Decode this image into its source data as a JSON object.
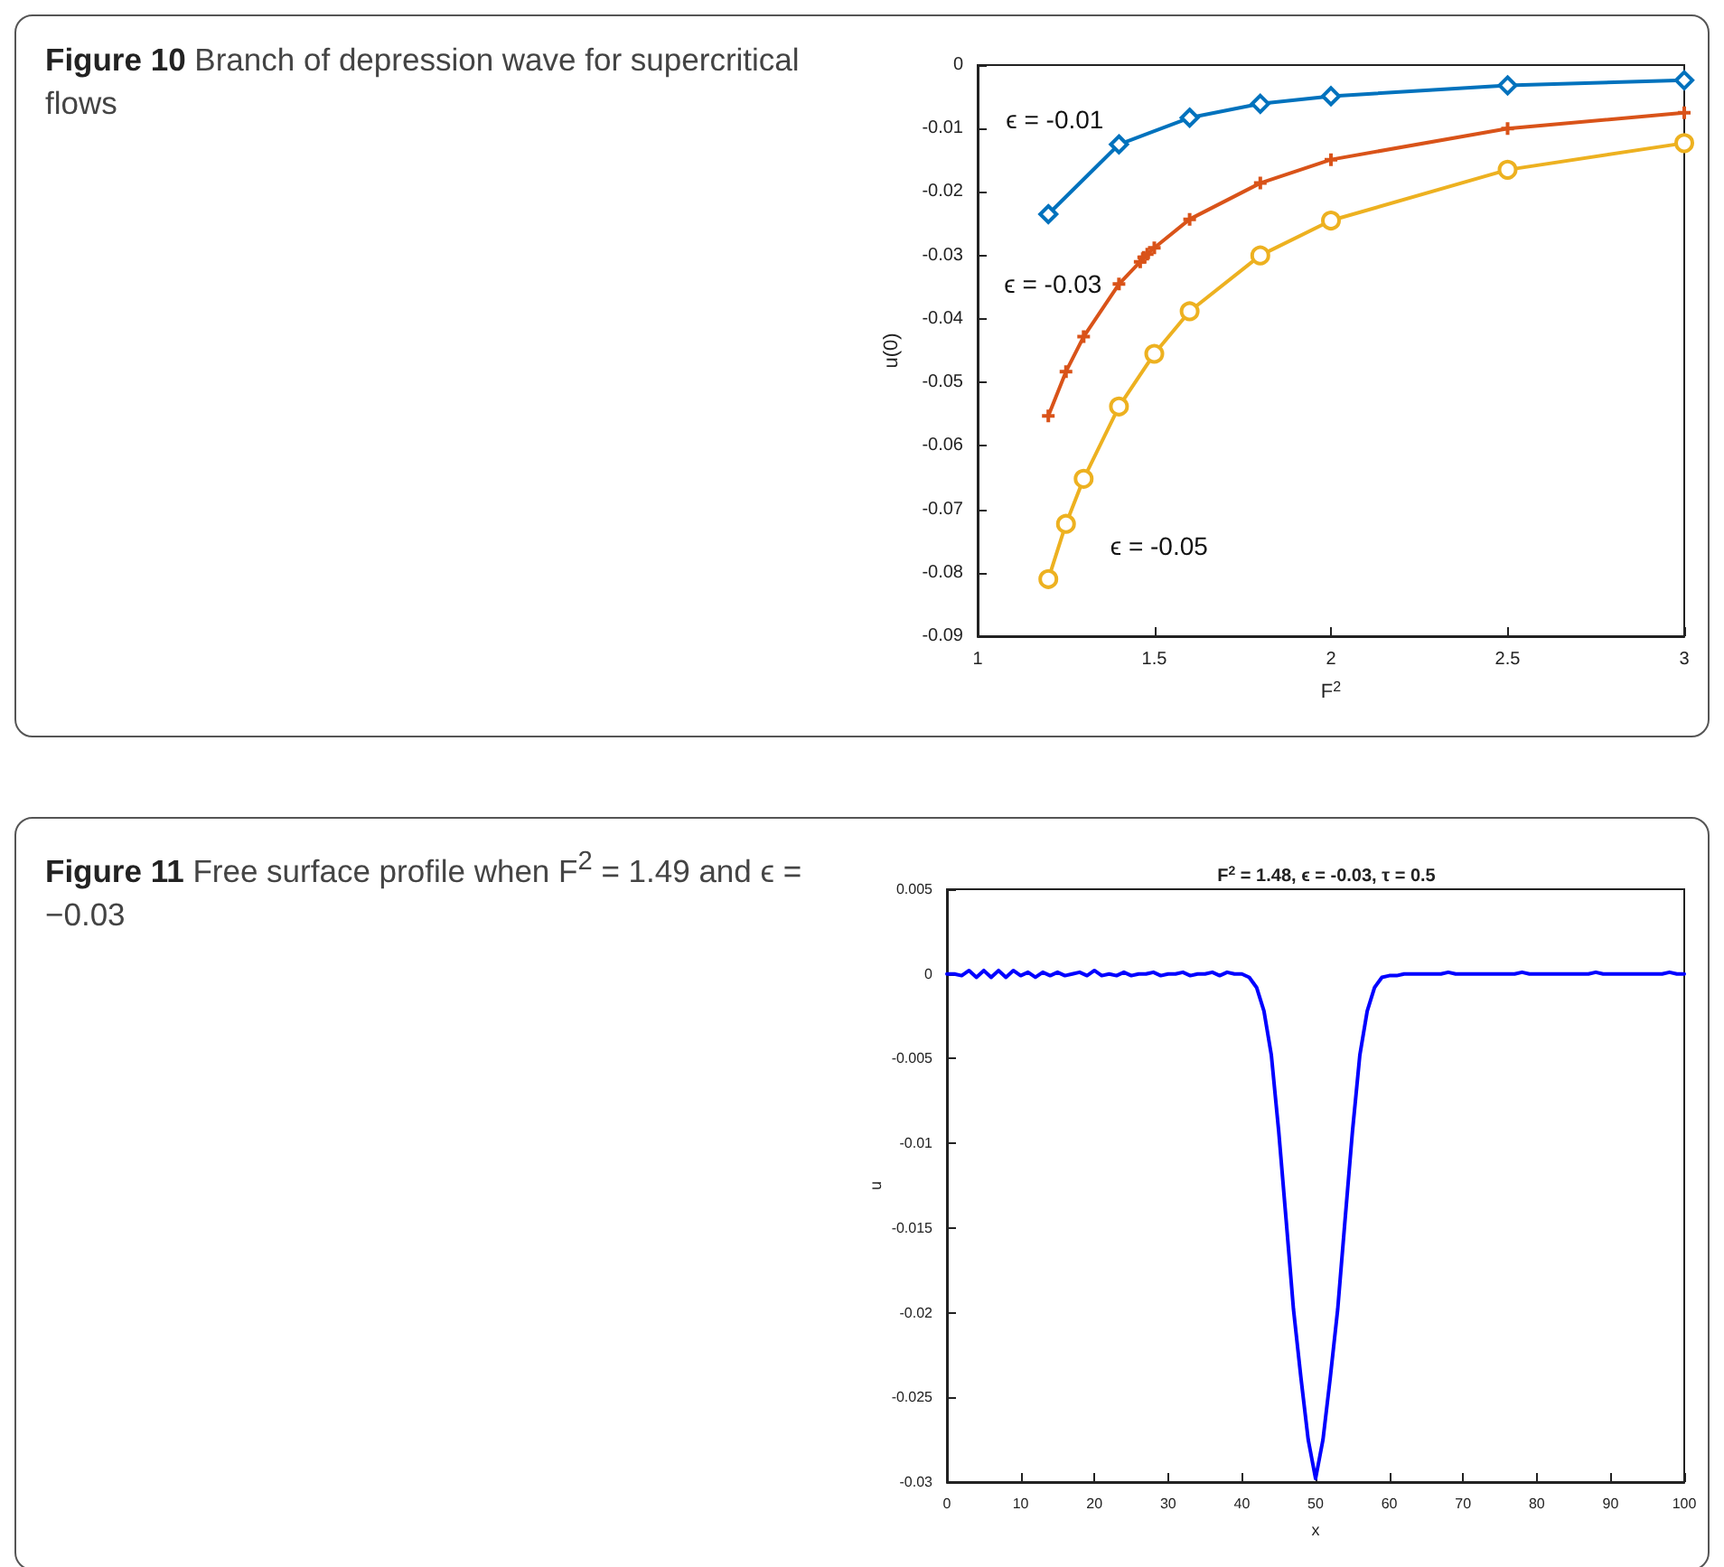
{
  "chart_data": [
    {
      "type": "line",
      "annotations": [
        "Figure 10  Branch of depression wave for supercritical flows"
      ],
      "xlabel": "F$^{2}$",
      "ylabel": "u(0)",
      "xlim": [
        1,
        3
      ],
      "xticks": [
        1,
        1.5,
        2,
        2.5,
        3
      ],
      "ylim": [
        -0.09,
        0
      ],
      "yticks": [
        -0.09,
        -0.08,
        -0.07,
        -0.06,
        -0.05,
        -0.04,
        -0.03,
        -0.02,
        -0.01,
        0
      ],
      "grid": false,
      "legend": false,
      "series": [
        {
          "name": "ϵ = -0.01",
          "color": "#0072bd",
          "marker": "diamond",
          "x": [
            1.2,
            1.4,
            1.6,
            1.8,
            2,
            2.5,
            3
          ],
          "values": [
            -0.0235,
            -0.0125,
            -0.0083,
            -0.0061,
            -0.0049,
            -0.0032,
            -0.0024
          ]
        },
        {
          "name": "ϵ = -0.03",
          "color": "#d95319",
          "marker": "cross",
          "x": [
            1.2,
            1.25,
            1.3,
            1.4,
            1.46,
            1.47,
            1.48,
            1.5,
            1.6,
            1.8,
            2,
            2.5,
            3
          ],
          "values": [
            -0.0553,
            -0.0483,
            -0.0428,
            -0.0345,
            -0.031,
            -0.0303,
            -0.0298,
            -0.0288,
            -0.0243,
            -0.0186,
            -0.0149,
            -0.01,
            -0.0075
          ]
        },
        {
          "name": "ϵ = -0.05",
          "color": "#edb120",
          "marker": "circle",
          "x": [
            1.2,
            1.25,
            1.3,
            1.4,
            1.5,
            1.6,
            1.8,
            2,
            2.5,
            3
          ],
          "values": [
            -0.081,
            -0.0723,
            -0.0652,
            -0.0538,
            -0.0455,
            -0.0388,
            -0.03,
            -0.0245,
            -0.0165,
            -0.0123
          ]
        }
      ]
    },
    {
      "type": "line",
      "annotations": [
        "Figure 11  Free surface profile when F$^{2}$ = 1.49 and ϵ = −0.03"
      ],
      "title": "F$^{2}$ = 1.48, ϵ = -0.03, τ = 0.5",
      "xlabel": "x",
      "ylabel": "u",
      "xlim": [
        0,
        100
      ],
      "xticks": [
        0,
        10,
        20,
        30,
        40,
        50,
        60,
        70,
        80,
        90,
        100
      ],
      "ylim": [
        -0.03,
        0.005
      ],
      "yticks": [
        -0.03,
        -0.025,
        -0.02,
        -0.015,
        -0.01,
        -0.005,
        0,
        0.005
      ],
      "grid": false,
      "legend": false,
      "series": [
        {
          "color": "#0000ff",
          "x": [
            0,
            1,
            2,
            3,
            4,
            5,
            6,
            7,
            8,
            9,
            10,
            11,
            12,
            13,
            14,
            15,
            16,
            17,
            18,
            19,
            20,
            21,
            22,
            23,
            24,
            25,
            26,
            27,
            28,
            29,
            30,
            31,
            32,
            33,
            34,
            35,
            36,
            37,
            38,
            39,
            40,
            41,
            42,
            43,
            44,
            45,
            46,
            47,
            48,
            49,
            50,
            51,
            52,
            53,
            54,
            55,
            56,
            57,
            58,
            59,
            60,
            61,
            62,
            63,
            64,
            65,
            66,
            67,
            68,
            69,
            70,
            71,
            72,
            73,
            74,
            75,
            76,
            77,
            78,
            79,
            80,
            81,
            82,
            83,
            84,
            85,
            86,
            87,
            88,
            89,
            90,
            91,
            92,
            93,
            94,
            95,
            96,
            97,
            98,
            99,
            100
          ],
          "values": [
            0,
            0,
            -0.0001,
            0.0002,
            -0.0002,
            0.0002,
            -0.0002,
            0.0002,
            -0.0002,
            0.0002,
            -0.0001,
            0.0001,
            -0.0002,
            0.0001,
            -0.0001,
            0.0001,
            -0.0001,
            0,
            0.0001,
            -0.0001,
            0.0002,
            -0.0001,
            0,
            -0.0001,
            0.0001,
            -0.0001,
            0,
            0,
            0.0001,
            -0.0001,
            0,
            0,
            0.0001,
            -0.0001,
            0,
            0,
            0.0001,
            -0.0001,
            0.0001,
            0,
            0,
            -0.0002,
            -0.0008,
            -0.0022,
            -0.0048,
            -0.0093,
            -0.0145,
            -0.0198,
            -0.0238,
            -0.0275,
            -0.0298,
            -0.0275,
            -0.0238,
            -0.0198,
            -0.0145,
            -0.0093,
            -0.0048,
            -0.0022,
            -0.0008,
            -0.0002,
            -0.0001,
            -0.0001,
            0,
            0,
            0,
            0,
            0,
            0,
            0.0001,
            0,
            0,
            0,
            0,
            0,
            0,
            0,
            0,
            0,
            0.0001,
            0,
            0,
            0,
            0,
            0,
            0,
            0,
            0,
            0,
            0.0001,
            0,
            0,
            0,
            0,
            0,
            0,
            0,
            0,
            0,
            0.0001,
            0,
            0
          ]
        }
      ]
    }
  ]
}
